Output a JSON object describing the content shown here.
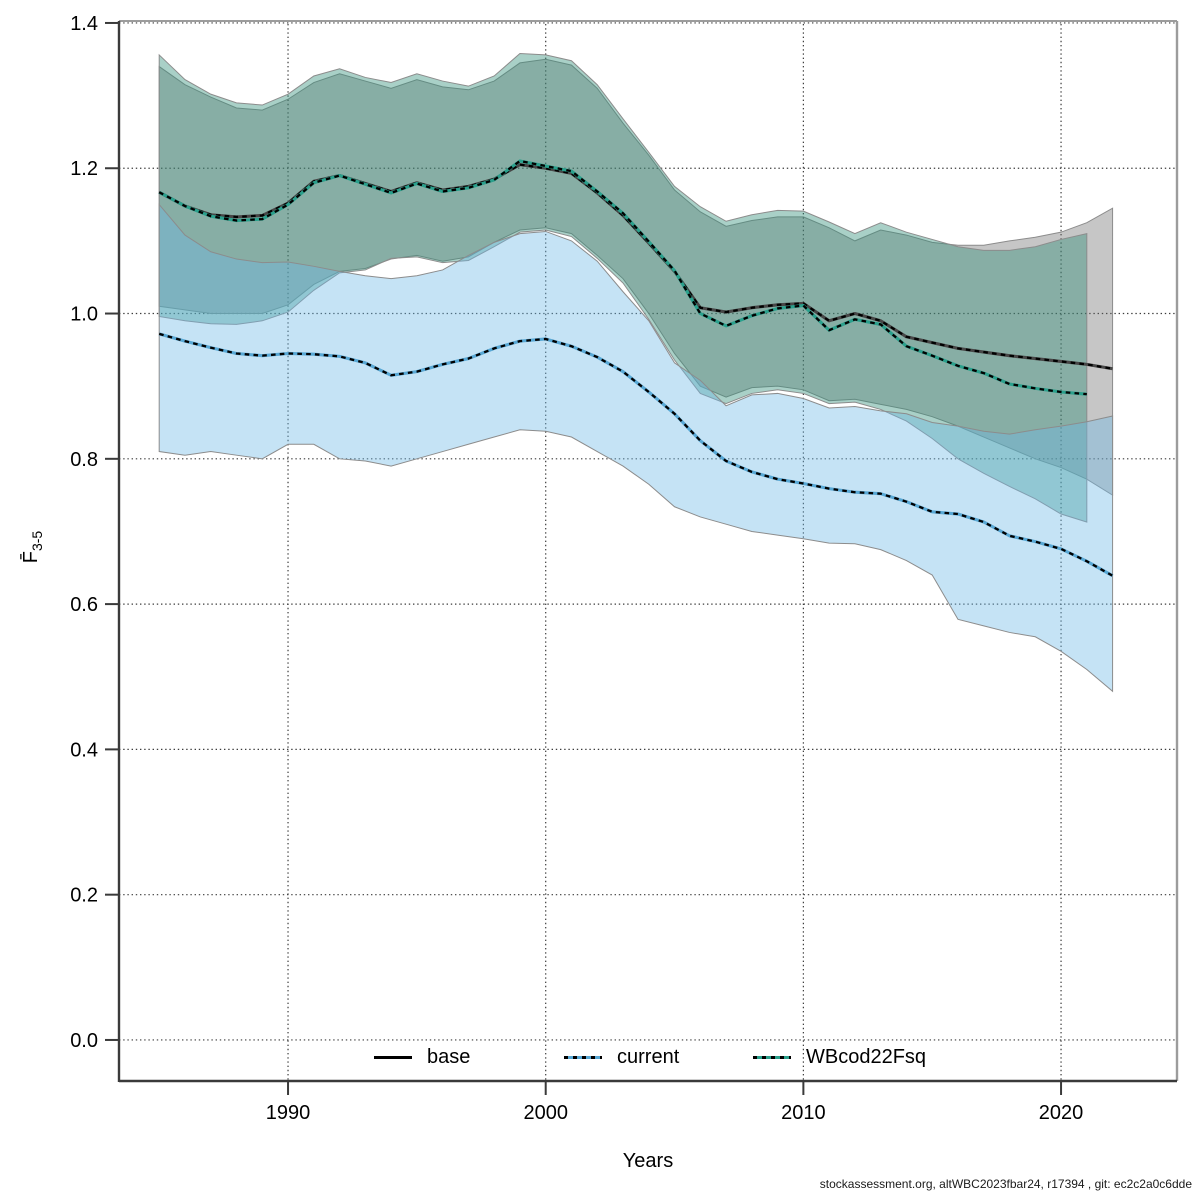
{
  "labels": {
    "x_axis": "Years",
    "y_axis_main": "F̄",
    "y_axis_sub": "3-5"
  },
  "legend": {
    "position": "bottom-center-inside",
    "items": [
      {
        "label": "base",
        "style": "solid",
        "color": "#000000"
      },
      {
        "label": "current",
        "style": "dashed",
        "color": "#58a8d5"
      },
      {
        "label": "WBcod22Fsq",
        "style": "dashed",
        "color": "#2aa08c"
      }
    ]
  },
  "footer": {
    "text": "stockassessment.org, altWBC2023fbar24, r17394 , git: ec2c2a0c6dde"
  },
  "chart_data": {
    "type": "line",
    "title": "",
    "xlabel": "Years",
    "ylabel": "Fbar 3-5",
    "grid": "dotted",
    "xlim": [
      1983.44,
      2024.5
    ],
    "ylim": [
      -0.0565,
      1.4027
    ],
    "x_ticks": [
      1990,
      2000,
      2010,
      2020
    ],
    "y_ticks": [
      0.0,
      0.2,
      0.4,
      0.6,
      0.8,
      1.0,
      1.2,
      1.4
    ],
    "colors": {
      "grid": "#3c3c3c",
      "frame_dark": "#3a3a3a",
      "frame_light": "#9c9c9c",
      "band_edge": "#8c8c8c",
      "dash_overlay": "#000000"
    },
    "series": [
      {
        "name": "base",
        "line_color": "#474747",
        "dashed_overlay": true,
        "band_fill": "rgba(105,105,105,0.38)",
        "years": [
          1985,
          1986,
          1987,
          1988,
          1989,
          1990,
          1991,
          1992,
          1993,
          1994,
          1995,
          1996,
          1997,
          1998,
          1999,
          2000,
          2001,
          2002,
          2003,
          2004,
          2005,
          2006,
          2007,
          2008,
          2009,
          2010,
          2011,
          2012,
          2013,
          2014,
          2015,
          2016,
          2017,
          2018,
          2019,
          2020,
          2021,
          2022
        ],
        "values": [
          1.167,
          1.148,
          1.136,
          1.133,
          1.135,
          1.152,
          1.182,
          1.19,
          1.179,
          1.168,
          1.18,
          1.17,
          1.175,
          1.185,
          1.205,
          1.2,
          1.193,
          1.166,
          1.135,
          1.097,
          1.058,
          1.008,
          1.002,
          1.008,
          1.012,
          1.014,
          0.99,
          1.0,
          0.99,
          0.968,
          0.96,
          0.952,
          0.947,
          0.942,
          0.938,
          0.934,
          0.93,
          0.924
        ],
        "lo": [
          1.01,
          1.005,
          1.0,
          1.0,
          1.0,
          1.012,
          1.04,
          1.058,
          1.062,
          1.075,
          1.08,
          1.072,
          1.078,
          1.098,
          1.115,
          1.118,
          1.11,
          1.08,
          1.048,
          1.0,
          0.945,
          0.9,
          0.885,
          0.898,
          0.9,
          0.895,
          0.88,
          0.882,
          0.875,
          0.868,
          0.858,
          0.845,
          0.83,
          0.815,
          0.8,
          0.788,
          0.772,
          0.75
        ],
        "hi": [
          1.34,
          1.315,
          1.298,
          1.283,
          1.28,
          1.295,
          1.318,
          1.33,
          1.32,
          1.31,
          1.322,
          1.312,
          1.308,
          1.32,
          1.345,
          1.35,
          1.342,
          1.31,
          1.262,
          1.218,
          1.17,
          1.14,
          1.12,
          1.128,
          1.133,
          1.133,
          1.118,
          1.1,
          1.115,
          1.108,
          1.098,
          1.094,
          1.094,
          1.1,
          1.105,
          1.112,
          1.125,
          1.145
        ]
      },
      {
        "name": "WBcod22Fsq",
        "line_color": "#2aa08c",
        "dashed_overlay": true,
        "band_fill": "rgba(45,140,120,0.41)",
        "years": [
          1985,
          1986,
          1987,
          1988,
          1989,
          1990,
          1991,
          1992,
          1993,
          1994,
          1995,
          1996,
          1997,
          1998,
          1999,
          2000,
          2001,
          2002,
          2003,
          2004,
          2005,
          2006,
          2007,
          2008,
          2009,
          2010,
          2011,
          2012,
          2013,
          2014,
          2015,
          2016,
          2017,
          2018,
          2019,
          2020,
          2021
        ],
        "values": [
          1.167,
          1.148,
          1.134,
          1.128,
          1.13,
          1.15,
          1.18,
          1.19,
          1.178,
          1.166,
          1.179,
          1.168,
          1.173,
          1.184,
          1.21,
          1.203,
          1.196,
          1.168,
          1.138,
          1.099,
          1.059,
          1.0,
          0.983,
          0.997,
          1.007,
          1.011,
          0.977,
          0.992,
          0.985,
          0.955,
          0.942,
          0.928,
          0.918,
          0.903,
          0.897,
          0.892,
          0.889
        ],
        "lo": [
          0.996,
          0.99,
          0.986,
          0.985,
          0.99,
          1.002,
          1.032,
          1.056,
          1.06,
          1.076,
          1.078,
          1.07,
          1.073,
          1.092,
          1.112,
          1.115,
          1.106,
          1.076,
          1.042,
          0.992,
          0.936,
          0.89,
          0.876,
          0.89,
          0.895,
          0.89,
          0.876,
          0.878,
          0.868,
          0.852,
          0.828,
          0.8,
          0.78,
          0.762,
          0.745,
          0.724,
          0.713
        ],
        "hi": [
          1.356,
          1.322,
          1.302,
          1.29,
          1.287,
          1.302,
          1.327,
          1.337,
          1.325,
          1.318,
          1.33,
          1.32,
          1.313,
          1.327,
          1.358,
          1.356,
          1.348,
          1.315,
          1.268,
          1.222,
          1.175,
          1.147,
          1.127,
          1.136,
          1.142,
          1.141,
          1.126,
          1.11,
          1.125,
          1.112,
          1.102,
          1.092,
          1.087,
          1.087,
          1.092,
          1.102,
          1.11
        ]
      },
      {
        "name": "current",
        "line_color": "#58a8d5",
        "dashed_overlay": true,
        "band_fill": "rgba(110,185,230,0.40)",
        "years": [
          1985,
          1986,
          1987,
          1988,
          1989,
          1990,
          1991,
          1992,
          1993,
          1994,
          1995,
          1996,
          1997,
          1998,
          1999,
          2000,
          2001,
          2002,
          2003,
          2004,
          2005,
          2006,
          2007,
          2008,
          2009,
          2010,
          2011,
          2012,
          2013,
          2014,
          2015,
          2016,
          2017,
          2018,
          2019,
          2020,
          2021,
          2022
        ],
        "values": [
          0.972,
          0.962,
          0.953,
          0.945,
          0.942,
          0.945,
          0.944,
          0.941,
          0.932,
          0.915,
          0.92,
          0.93,
          0.938,
          0.952,
          0.962,
          0.965,
          0.955,
          0.94,
          0.92,
          0.892,
          0.862,
          0.825,
          0.797,
          0.782,
          0.772,
          0.766,
          0.759,
          0.754,
          0.752,
          0.741,
          0.727,
          0.724,
          0.713,
          0.694,
          0.686,
          0.676,
          0.659,
          0.639
        ],
        "lo": [
          0.81,
          0.805,
          0.81,
          0.805,
          0.8,
          0.82,
          0.82,
          0.8,
          0.797,
          0.79,
          0.8,
          0.81,
          0.82,
          0.83,
          0.84,
          0.838,
          0.83,
          0.81,
          0.79,
          0.765,
          0.734,
          0.72,
          0.71,
          0.7,
          0.695,
          0.69,
          0.684,
          0.683,
          0.675,
          0.66,
          0.64,
          0.579,
          0.57,
          0.561,
          0.555,
          0.535,
          0.51,
          0.48
        ],
        "hi": [
          1.15,
          1.108,
          1.085,
          1.075,
          1.07,
          1.071,
          1.065,
          1.058,
          1.052,
          1.048,
          1.052,
          1.06,
          1.08,
          1.098,
          1.11,
          1.113,
          1.1,
          1.072,
          1.03,
          0.99,
          0.932,
          0.908,
          0.873,
          0.888,
          0.89,
          0.883,
          0.87,
          0.872,
          0.866,
          0.862,
          0.85,
          0.845,
          0.838,
          0.834,
          0.84,
          0.845,
          0.851,
          0.859
        ]
      }
    ]
  }
}
